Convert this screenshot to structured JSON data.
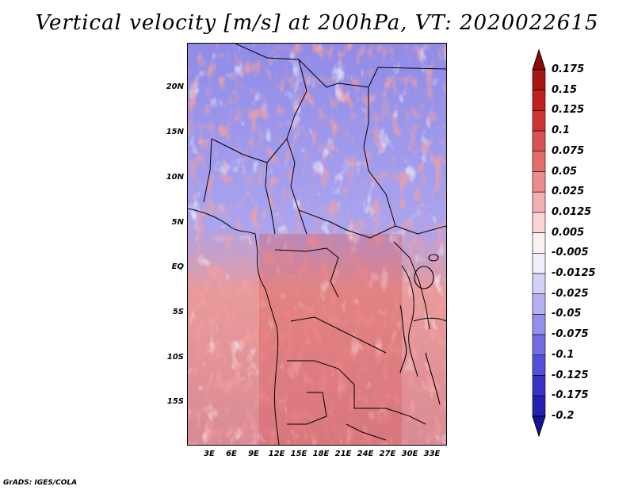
{
  "title": "Vertical velocity [m/s] at 200hPa, VT: 2020022615",
  "y_axis_labels": [
    "20N",
    "15N",
    "10N",
    "5N",
    "EQ",
    "5S",
    "10S",
    "15S"
  ],
  "x_axis_labels": [
    "3E",
    "6E",
    "9E",
    "12E",
    "15E",
    "18E",
    "21E",
    "24E",
    "27E",
    "30E",
    "33E"
  ],
  "colorbar": {
    "labels": [
      "0.175",
      "0.15",
      "0.125",
      "0.1",
      "0.075",
      "0.05",
      "0.025",
      "0.0125",
      "0.005",
      "-0.005",
      "-0.0125",
      "-0.025",
      "-0.05",
      "-0.075",
      "-0.1",
      "-0.125",
      "-0.175",
      "-0.2"
    ],
    "colors": [
      "#8e0a0a",
      "#a81515",
      "#bf2020",
      "#cf3434",
      "#db5050",
      "#e46c6c",
      "#ec8c8c",
      "#f3b0b0",
      "#f9d4d4",
      "#fdf0f0",
      "#efeefd",
      "#d3d1f7",
      "#b4b1f1",
      "#938fea",
      "#726ee2",
      "#5350d8",
      "#3733c8",
      "#2420b0",
      "#13109a"
    ]
  },
  "credit": "GrADS: IGES/COLA"
}
